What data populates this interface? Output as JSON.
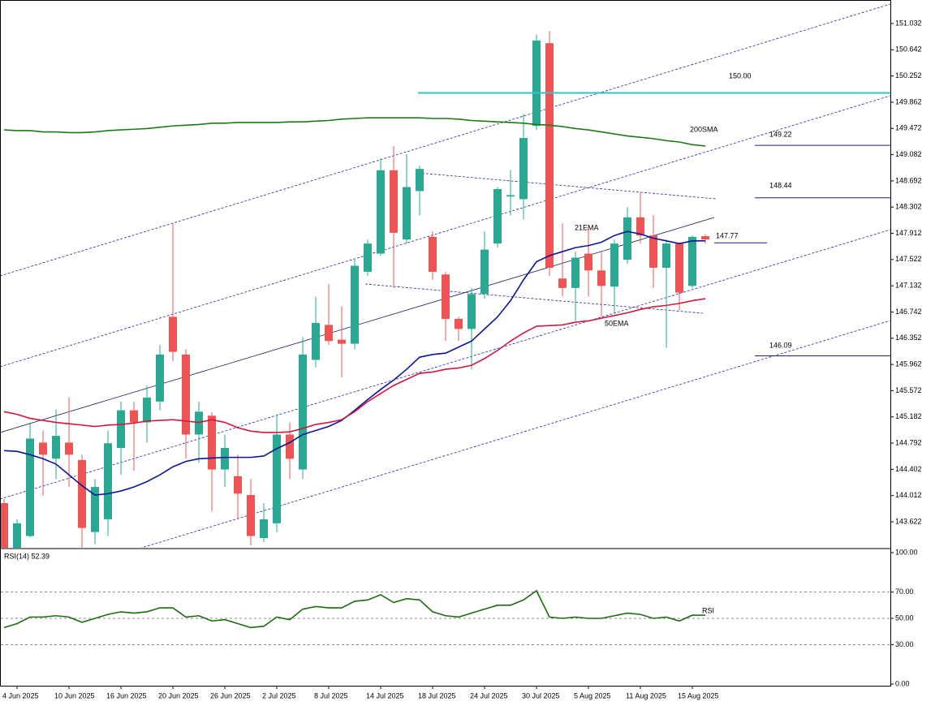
{
  "chart_data": [
    {
      "type": "candlestick",
      "categories": [
        null,
        "4 Jun 2025",
        null,
        null,
        null,
        "10 Jun 2025",
        null,
        null,
        null,
        "16 Jun 2025",
        null,
        null,
        null,
        "20 Jun 2025",
        null,
        null,
        null,
        "26 Jun 2025",
        null,
        null,
        null,
        "2 Jul 2025",
        null,
        null,
        null,
        "8 Jul 2025",
        null,
        null,
        null,
        "14 Jul 2025",
        null,
        null,
        null,
        "18 Jul 2025",
        null,
        null,
        null,
        "24 Jul 2025",
        null,
        null,
        null,
        "30 Jul 2025",
        null,
        null,
        null,
        "5 Aug 2025",
        null,
        null,
        null,
        "11 Aug 2025",
        null,
        null,
        null,
        "15 Aug 2025",
        null
      ],
      "open": [
        143.9,
        143.23,
        143.41,
        144.8,
        144.56,
        144.8,
        144.54,
        143.47,
        143.66,
        144.72,
        145.28,
        145.1,
        145.41,
        146.67,
        146.11,
        144.92,
        145.2,
        144.4,
        144.3,
        144.02,
        143.38,
        143.6,
        144.92,
        144.4,
        146.03,
        146.55,
        146.33,
        146.27,
        147.34,
        147.61,
        148.85,
        147.82,
        148.54,
        147.86,
        147.3,
        146.64,
        146.49,
        147.01,
        147.76,
        148.46,
        148.42,
        149.51,
        150.74,
        147.24,
        147.1,
        147.61,
        147.36,
        147.12,
        147.52,
        148.15,
        147.88,
        147.4,
        147.76,
        147.13,
        147.87
      ],
      "high": [
        143.96,
        143.66,
        145.1,
        144.98,
        145.29,
        145.47,
        144.62,
        144.26,
        144.98,
        145.41,
        145.41,
        145.65,
        146.25,
        148.06,
        146.19,
        145.41,
        145.25,
        144.92,
        144.62,
        144.26,
        143.9,
        145.22,
        145.1,
        146.37,
        146.97,
        147.16,
        146.82,
        147.52,
        147.82,
        149.03,
        149.21,
        149.09,
        148.92,
        147.94,
        147.34,
        146.67,
        147.1,
        147.94,
        148.6,
        148.85,
        149.69,
        150.87,
        150.92,
        148.06,
        147.64,
        148.0,
        147.64,
        147.82,
        148.3,
        148.52,
        148.18,
        147.82,
        147.78,
        147.88,
        147.9
      ],
      "low": [
        143.1,
        143.2,
        143.39,
        144.01,
        144.26,
        144.14,
        143.23,
        143.29,
        143.41,
        144.32,
        144.38,
        144.8,
        145.28,
        146.01,
        144.56,
        144.5,
        143.78,
        144.14,
        143.66,
        143.27,
        143.32,
        143.47,
        144.26,
        144.26,
        145.92,
        146.25,
        145.77,
        146.19,
        147.28,
        147.58,
        147.1,
        147.76,
        148.18,
        147.22,
        146.31,
        146.31,
        145.89,
        146.94,
        147.7,
        148.18,
        148.12,
        149.45,
        147.28,
        146.97,
        146.61,
        146.97,
        146.67,
        146.73,
        147.46,
        147.76,
        147.1,
        146.21,
        146.77,
        147.1,
        147.76
      ],
      "close": [
        143.23,
        143.6,
        144.86,
        144.62,
        144.9,
        144.62,
        143.53,
        144.14,
        144.79,
        145.28,
        145.1,
        145.47,
        146.11,
        146.15,
        144.92,
        145.26,
        144.4,
        144.72,
        144.04,
        143.41,
        143.66,
        144.92,
        144.56,
        146.11,
        146.58,
        146.31,
        146.27,
        147.43,
        147.76,
        148.85,
        147.92,
        148.6,
        148.87,
        147.34,
        146.64,
        146.49,
        147.01,
        147.67,
        148.57,
        148.48,
        149.33,
        150.78,
        147.4,
        147.1,
        147.55,
        147.36,
        147.13,
        147.76,
        148.15,
        147.88,
        147.4,
        147.76,
        147.03,
        147.86,
        147.82
      ],
      "up_color": "#2aa992",
      "down_color": "#ef5454",
      "series": [
        {
          "name": "21EMA",
          "color": "#0c159c",
          "values": [
            144.68,
            144.67,
            144.62,
            144.56,
            144.48,
            144.32,
            144.16,
            144.02,
            144.04,
            144.08,
            144.14,
            144.22,
            144.32,
            144.44,
            144.52,
            144.56,
            144.57,
            144.58,
            144.58,
            144.58,
            144.6,
            144.71,
            144.8,
            144.92,
            144.98,
            145.04,
            145.13,
            145.28,
            145.44,
            145.59,
            145.73,
            145.89,
            146.07,
            146.11,
            146.13,
            146.22,
            146.31,
            146.49,
            146.67,
            146.91,
            147.22,
            147.49,
            147.58,
            147.64,
            147.7,
            147.73,
            147.78,
            147.88,
            147.94,
            147.9,
            147.84,
            147.8,
            147.76,
            147.8,
            147.8
          ]
        },
        {
          "name": "50EMA",
          "color": "#d3163d",
          "values": [
            145.26,
            145.22,
            145.16,
            145.13,
            145.1,
            145.08,
            145.06,
            145.04,
            145.06,
            145.07,
            145.09,
            145.12,
            145.13,
            145.14,
            145.12,
            145.1,
            145.14,
            145.1,
            145.02,
            144.97,
            144.95,
            144.95,
            144.96,
            145.01,
            145.07,
            145.1,
            145.14,
            145.26,
            145.41,
            145.53,
            145.65,
            145.74,
            145.83,
            145.85,
            145.89,
            145.91,
            145.95,
            146.05,
            146.17,
            146.31,
            146.43,
            146.53,
            146.54,
            146.55,
            146.59,
            146.61,
            146.65,
            146.69,
            146.73,
            146.78,
            146.82,
            146.84,
            146.87,
            146.91,
            146.94
          ]
        },
        {
          "name": "200SMA",
          "color": "#1c7a16",
          "values": [
            149.45,
            149.44,
            149.44,
            149.42,
            149.42,
            149.41,
            149.41,
            149.42,
            149.44,
            149.45,
            149.46,
            149.47,
            149.49,
            149.51,
            149.52,
            149.53,
            149.55,
            149.55,
            149.56,
            149.56,
            149.56,
            149.56,
            149.57,
            149.57,
            149.58,
            149.59,
            149.61,
            149.62,
            149.63,
            149.63,
            149.63,
            149.63,
            149.63,
            149.62,
            149.62,
            149.61,
            149.59,
            149.58,
            149.57,
            149.56,
            149.55,
            149.53,
            149.52,
            149.5,
            149.47,
            149.45,
            149.42,
            149.39,
            149.36,
            149.34,
            149.32,
            149.29,
            149.27,
            149.23,
            149.21
          ]
        }
      ],
      "levels": [
        {
          "value": 150.0,
          "label": "150.00",
          "color": "#2ec4c4"
        },
        {
          "value": 149.22,
          "label": "149.22",
          "color": "#1b1f7a"
        },
        {
          "value": 148.44,
          "label": "148.44",
          "color": "#1b1f7a"
        },
        {
          "value": 147.77,
          "label": "147.77",
          "color": "#1b1f7a"
        },
        {
          "value": 146.09,
          "label": "146.09",
          "color": "#1b1f7a"
        }
      ],
      "ylim": [
        143.236,
        151.382
      ],
      "yticks": [
        143.622,
        144.012,
        144.402,
        144.792,
        145.182,
        145.572,
        145.962,
        146.352,
        146.742,
        147.132,
        147.522,
        147.912,
        148.302,
        148.692,
        149.082,
        149.472,
        149.862,
        150.252,
        150.642,
        151.032
      ]
    },
    {
      "type": "line",
      "title": "RSI(14) 52.39",
      "series": [
        {
          "name": "RSI",
          "color": "#1d6b10",
          "values": [
            43,
            46,
            51,
            51,
            52,
            51,
            47,
            50,
            53,
            55,
            54,
            55,
            58,
            58,
            51,
            52,
            48,
            49,
            46,
            43,
            44,
            51,
            49,
            57,
            59,
            58,
            58,
            63,
            64,
            68,
            62,
            65,
            64,
            55,
            52,
            51,
            54,
            57,
            60,
            60,
            64,
            71,
            51,
            50,
            51,
            50,
            50,
            52,
            54,
            53,
            50,
            51,
            48,
            52.4,
            52.39
          ]
        }
      ],
      "ylim": [
        0,
        100
      ],
      "yticks": [
        {
          "value": 0,
          "label": "0.00"
        },
        {
          "value": 30,
          "label": "30.00"
        },
        {
          "value": 50,
          "label": "50.00"
        },
        {
          "value": 70,
          "label": "70.00"
        },
        {
          "value": 100,
          "label": "100.00"
        }
      ]
    }
  ]
}
